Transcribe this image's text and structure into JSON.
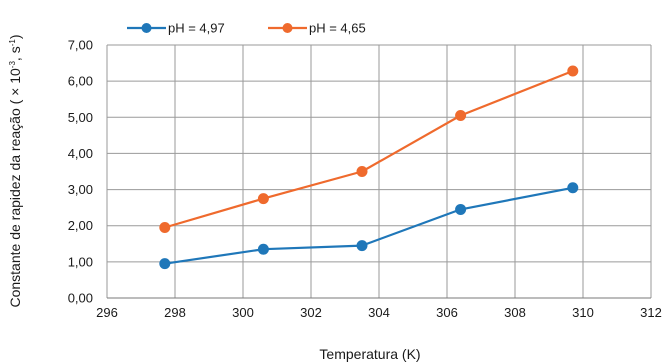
{
  "chart_data": {
    "type": "line",
    "title": "",
    "xlabel": "Temperatura (K)",
    "ylabel": {
      "prefix": "Constante de rapidez da reação ( × 10",
      "exp1": "-3",
      "middle": ", s",
      "exp2": "-1",
      "suffix": ")"
    },
    "xlim": [
      296,
      312
    ],
    "ylim": [
      0,
      7
    ],
    "xticks": [
      "296",
      "298",
      "300",
      "302",
      "304",
      "306",
      "308",
      "310",
      "312"
    ],
    "yticks": [
      "0,00",
      "1,00",
      "2,00",
      "3,00",
      "4,00",
      "5,00",
      "6,00",
      "7,00"
    ],
    "grid": true,
    "legend_position": "top-left",
    "series": [
      {
        "name": "pH = 4,97",
        "color": "#1f77b9",
        "x": [
          297.7,
          300.6,
          303.5,
          306.4,
          309.7
        ],
        "y": [
          0.95,
          1.35,
          1.45,
          2.45,
          3.05
        ]
      },
      {
        "name": "pH = 4,65",
        "color": "#ef6a2d",
        "x": [
          297.7,
          300.6,
          303.5,
          306.4,
          309.7
        ],
        "y": [
          1.95,
          2.75,
          3.5,
          5.05,
          6.28
        ]
      }
    ]
  }
}
